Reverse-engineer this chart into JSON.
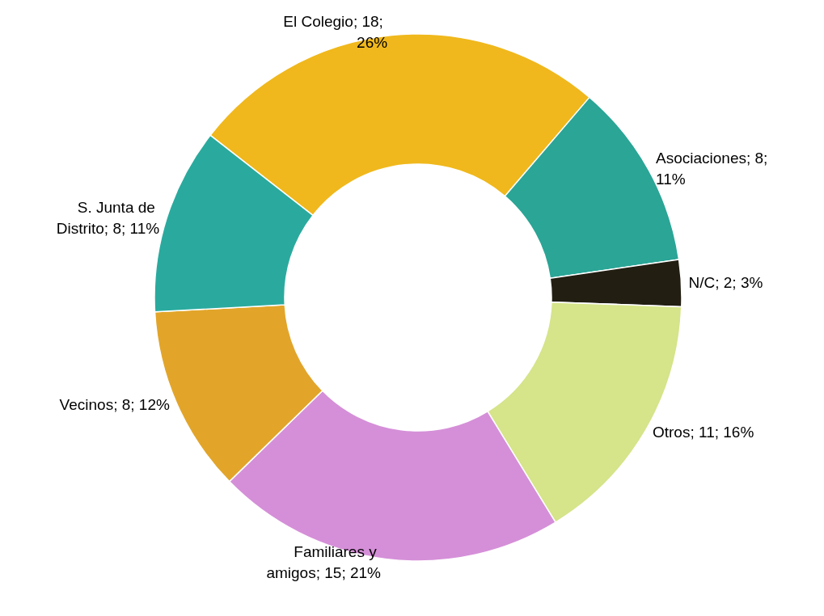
{
  "chart_data": {
    "type": "donut",
    "categories": [
      "El Colegio",
      "Asociaciones",
      "N/C",
      "Otros",
      "Familiares y amigos",
      "Vecinos",
      "S. Junta de Distrito"
    ],
    "values": [
      18,
      8,
      2,
      11,
      15,
      8,
      8
    ],
    "value_labels": [
      "; 18; 26%",
      "; 8; 11%",
      "; 2; 3%",
      "; 11; 16%",
      "; 15; 21%",
      "; 8; 12%",
      "; 8; 11%"
    ],
    "colors": [
      "#f0b81c",
      "#2aa596",
      "#221e12",
      "#d6e48a",
      "#d58fd8",
      "#e2a52a",
      "#2aaa9e"
    ],
    "legend": false
  }
}
